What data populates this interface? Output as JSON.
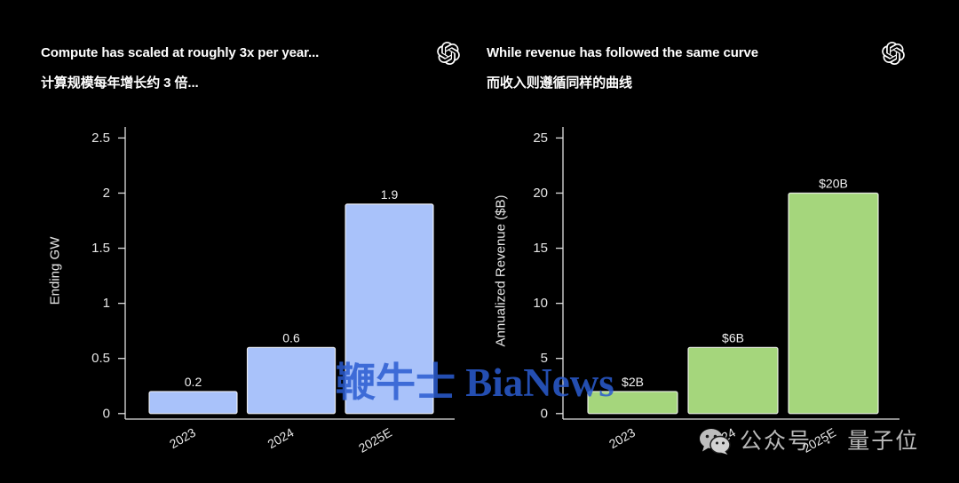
{
  "page": {
    "background": "#000000"
  },
  "panels": [
    {
      "logo_icon": "openai-logo-icon"
    },
    {
      "logo_icon": "openai-logo-icon"
    }
  ],
  "chart_data": [
    {
      "type": "bar",
      "title": "Compute has scaled at roughly 3x per year...",
      "subtitle": "计算规模每年增长约 3 倍...",
      "categories": [
        "2023",
        "2024",
        "2025E"
      ],
      "values": [
        0.2,
        0.6,
        1.9
      ],
      "data_labels": [
        "0.2",
        "0.6",
        "1.9"
      ],
      "ylabel": "Ending GW",
      "ylim": [
        -0.05,
        2.6
      ],
      "yticks": [
        0,
        0.5,
        1,
        1.5,
        2,
        2.5
      ],
      "bar_color": "#a9c2fa",
      "grid": false
    },
    {
      "type": "bar",
      "title": "While revenue has followed the same curve",
      "subtitle": "而收入则遵循同样的曲线",
      "categories": [
        "2023",
        "2024",
        "2025E"
      ],
      "values": [
        2,
        6,
        20
      ],
      "data_labels": [
        "$2B",
        "$6B",
        "$20B"
      ],
      "ylabel": "Annualized Revenue ($B)",
      "ylim": [
        -0.5,
        26
      ],
      "yticks": [
        0,
        5,
        10,
        15,
        20,
        25
      ],
      "bar_color": "#a5d67c",
      "grid": false
    }
  ],
  "watermarks": {
    "center_text": "鞭牛士 BiaNews",
    "center_color": "#2a5cd0",
    "corner_icon": "wechat-icon",
    "corner_text": "公众号 · 量子位"
  }
}
